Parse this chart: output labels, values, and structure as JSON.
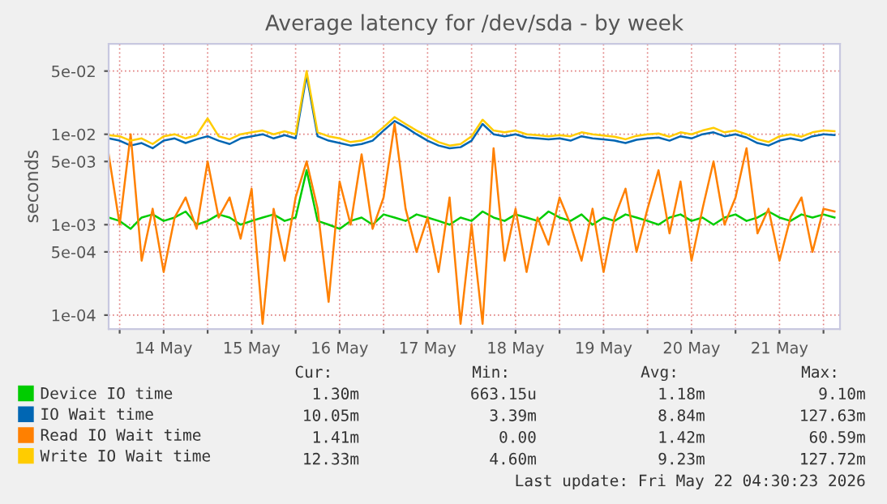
{
  "chart_data": {
    "type": "line",
    "title": "Average latency for /dev/sda - by week",
    "ylabel": "seconds",
    "log": "y",
    "x": [
      "2026-05-13T21:00",
      "2026-05-14T00:00",
      "2026-05-14T03:00",
      "2026-05-14T06:00",
      "2026-05-14T09:00",
      "2026-05-14T12:00",
      "2026-05-14T15:00",
      "2026-05-14T18:00",
      "2026-05-14T21:00",
      "2026-05-15T00:00",
      "2026-05-15T03:00",
      "2026-05-15T06:00",
      "2026-05-15T09:00",
      "2026-05-15T12:00",
      "2026-05-15T15:00",
      "2026-05-15T18:00",
      "2026-05-15T21:00",
      "2026-05-16T00:00",
      "2026-05-16T03:00",
      "2026-05-16T06:00",
      "2026-05-16T09:00",
      "2026-05-16T12:00",
      "2026-05-16T15:00",
      "2026-05-16T18:00",
      "2026-05-16T21:00",
      "2026-05-17T00:00",
      "2026-05-17T03:00",
      "2026-05-17T06:00",
      "2026-05-17T09:00",
      "2026-05-17T12:00",
      "2026-05-17T15:00",
      "2026-05-17T18:00",
      "2026-05-17T21:00",
      "2026-05-18T00:00",
      "2026-05-18T03:00",
      "2026-05-18T06:00",
      "2026-05-18T09:00",
      "2026-05-18T12:00",
      "2026-05-18T15:00",
      "2026-05-18T18:00",
      "2026-05-18T21:00",
      "2026-05-19T00:00",
      "2026-05-19T03:00",
      "2026-05-19T06:00",
      "2026-05-19T09:00",
      "2026-05-19T12:00",
      "2026-05-19T15:00",
      "2026-05-19T18:00",
      "2026-05-19T21:00",
      "2026-05-20T00:00",
      "2026-05-20T03:00",
      "2026-05-20T06:00",
      "2026-05-20T09:00",
      "2026-05-20T12:00",
      "2026-05-20T15:00",
      "2026-05-20T18:00",
      "2026-05-20T21:00",
      "2026-05-21T00:00",
      "2026-05-21T03:00",
      "2026-05-21T06:00",
      "2026-05-21T09:00",
      "2026-05-21T12:00",
      "2026-05-21T15:00",
      "2026-05-21T18:00",
      "2026-05-21T21:00",
      "2026-05-22T00:00",
      "2026-05-22T03:00"
    ],
    "series": [
      {
        "name": "Device IO time",
        "color": "#00cc00",
        "values": [
          0.0012,
          0.0011,
          0.0009,
          0.0012,
          0.0013,
          0.0011,
          0.0012,
          0.0014,
          0.001,
          0.0011,
          0.0013,
          0.0012,
          0.001,
          0.0011,
          0.0012,
          0.0013,
          0.0011,
          0.0012,
          0.004,
          0.0011,
          0.001,
          0.0009,
          0.0011,
          0.0012,
          0.001,
          0.0013,
          0.0012,
          0.0011,
          0.0013,
          0.0012,
          0.0011,
          0.001,
          0.0012,
          0.0011,
          0.0014,
          0.0012,
          0.0011,
          0.0013,
          0.0012,
          0.0011,
          0.0014,
          0.0012,
          0.0011,
          0.0013,
          0.001,
          0.0012,
          0.0011,
          0.0013,
          0.0012,
          0.0011,
          0.001,
          0.0012,
          0.0013,
          0.0011,
          0.0012,
          0.001,
          0.0012,
          0.0013,
          0.0011,
          0.0012,
          0.0014,
          0.0012,
          0.0011,
          0.0013,
          0.0012,
          0.0013,
          0.0012
        ]
      },
      {
        "name": "IO Wait time",
        "color": "#0066b3",
        "values": [
          0.009,
          0.0085,
          0.0075,
          0.008,
          0.007,
          0.0085,
          0.009,
          0.008,
          0.0088,
          0.0095,
          0.0085,
          0.0078,
          0.009,
          0.0095,
          0.01,
          0.009,
          0.0098,
          0.009,
          0.045,
          0.0095,
          0.0085,
          0.008,
          0.0075,
          0.0078,
          0.0085,
          0.011,
          0.014,
          0.012,
          0.01,
          0.0085,
          0.0075,
          0.007,
          0.0072,
          0.0085,
          0.013,
          0.01,
          0.0095,
          0.01,
          0.0092,
          0.009,
          0.0088,
          0.009,
          0.0085,
          0.0095,
          0.009,
          0.0088,
          0.0085,
          0.008,
          0.0087,
          0.009,
          0.0092,
          0.0085,
          0.0095,
          0.009,
          0.01,
          0.0105,
          0.0095,
          0.01,
          0.0092,
          0.008,
          0.0075,
          0.0085,
          0.009,
          0.0085,
          0.0095,
          0.01,
          0.0098
        ]
      },
      {
        "name": "Read IO Wait time",
        "color": "#ff8000",
        "values": [
          0.006,
          0.001,
          0.01,
          0.0004,
          0.0015,
          0.0003,
          0.0012,
          0.002,
          0.0009,
          0.005,
          0.0012,
          0.002,
          0.0007,
          0.0025,
          8e-05,
          0.0015,
          0.0004,
          0.002,
          0.005,
          0.0015,
          0.00014,
          0.003,
          0.001,
          0.006,
          0.0009,
          0.002,
          0.013,
          0.0015,
          0.0005,
          0.0012,
          0.0003,
          0.002,
          8e-05,
          0.001,
          8e-05,
          0.007,
          0.0004,
          0.0015,
          0.0003,
          0.0012,
          0.0006,
          0.002,
          0.001,
          0.0004,
          0.0015,
          0.0003,
          0.0012,
          0.0025,
          0.0005,
          0.0015,
          0.004,
          0.0008,
          0.003,
          0.0004,
          0.0015,
          0.005,
          0.001,
          0.002,
          0.007,
          0.0008,
          0.0015,
          0.0004,
          0.0012,
          0.002,
          0.0005,
          0.0015,
          0.0014
        ]
      },
      {
        "name": "Write IO Wait time",
        "color": "#ffcc00",
        "values": [
          0.0098,
          0.0095,
          0.0085,
          0.009,
          0.0078,
          0.0095,
          0.01,
          0.009,
          0.0098,
          0.015,
          0.0095,
          0.0088,
          0.01,
          0.0105,
          0.011,
          0.01,
          0.0108,
          0.01,
          0.05,
          0.0105,
          0.0095,
          0.009,
          0.0082,
          0.0085,
          0.0095,
          0.012,
          0.0155,
          0.013,
          0.011,
          0.0095,
          0.0082,
          0.0075,
          0.0078,
          0.0095,
          0.0145,
          0.011,
          0.0105,
          0.011,
          0.01,
          0.0098,
          0.0095,
          0.0098,
          0.0095,
          0.0105,
          0.01,
          0.0097,
          0.0094,
          0.0088,
          0.0096,
          0.01,
          0.0102,
          0.0094,
          0.0105,
          0.01,
          0.011,
          0.0118,
          0.0105,
          0.011,
          0.01,
          0.0088,
          0.0082,
          0.0095,
          0.01,
          0.0094,
          0.0105,
          0.011,
          0.0108
        ]
      }
    ],
    "xlim": [
      "2026-05-13T21:00",
      "2026-05-22T04:30"
    ],
    "xticks": [
      {
        "value": "2026-05-14T00:00",
        "label": null
      },
      {
        "value": "2026-05-14T12:00",
        "label": "14 May"
      },
      {
        "value": "2026-05-15T00:00",
        "label": null
      },
      {
        "value": "2026-05-15T12:00",
        "label": "15 May"
      },
      {
        "value": "2026-05-16T00:00",
        "label": null
      },
      {
        "value": "2026-05-16T12:00",
        "label": "16 May"
      },
      {
        "value": "2026-05-17T00:00",
        "label": null
      },
      {
        "value": "2026-05-17T12:00",
        "label": "17 May"
      },
      {
        "value": "2026-05-18T00:00",
        "label": null
      },
      {
        "value": "2026-05-18T12:00",
        "label": "18 May"
      },
      {
        "value": "2026-05-19T00:00",
        "label": null
      },
      {
        "value": "2026-05-19T12:00",
        "label": "19 May"
      },
      {
        "value": "2026-05-20T00:00",
        "label": null
      },
      {
        "value": "2026-05-20T12:00",
        "label": "20 May"
      },
      {
        "value": "2026-05-21T00:00",
        "label": null
      },
      {
        "value": "2026-05-21T12:00",
        "label": "21 May"
      },
      {
        "value": "2026-05-22T00:00",
        "label": null
      }
    ],
    "ylim": [
      7e-05,
      0.1
    ],
    "yticks": [
      {
        "value": 0.0001,
        "label": "1e-04"
      },
      {
        "value": 0.0005,
        "label": "5e-04"
      },
      {
        "value": 0.001,
        "label": "1e-03"
      },
      {
        "value": 0.005,
        "label": "5e-03"
      },
      {
        "value": 0.01,
        "label": "1e-02"
      },
      {
        "value": 0.05,
        "label": "5e-02"
      }
    ],
    "grid": true,
    "legend": "bottom",
    "line_style": "solid",
    "annotations": [
      "Cur:",
      "Min:",
      "Avg:",
      "Max:",
      "1.30m",
      "663.15u",
      "1.18m",
      "9.10m",
      "10.05m",
      "3.39m",
      "8.84m",
      "127.63m",
      "1.41m",
      "0.00",
      "1.42m",
      "60.59m",
      "12.33m",
      "4.60m",
      "9.23m",
      "127.72m",
      "Last update: Fri May 22 04:30:23 2026"
    ]
  }
}
